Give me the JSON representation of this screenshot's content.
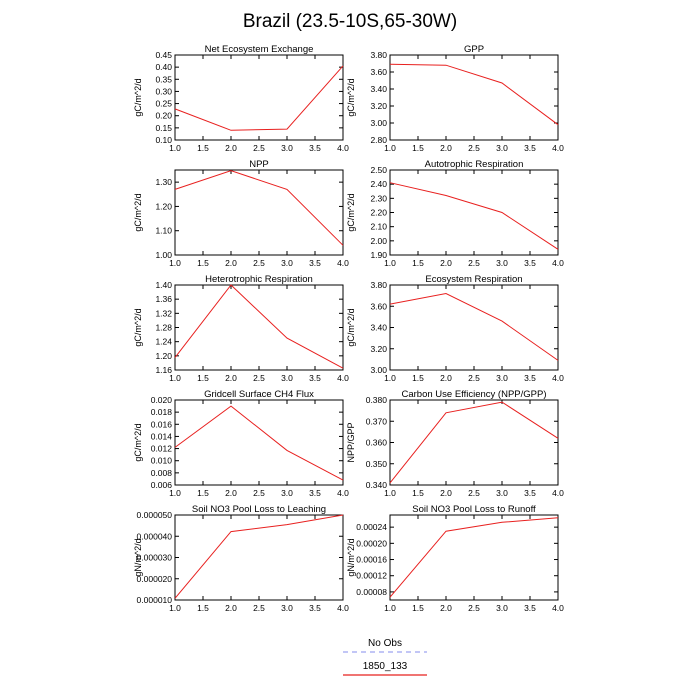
{
  "figure_title": "Brazil (23.5-10S,65-30W)",
  "legend": [
    {
      "label": "No Obs",
      "color": "#9ea3f0",
      "dashed": true
    },
    {
      "label": "1850_133",
      "color": "#e8201f",
      "dashed": false
    }
  ],
  "chart_data": [
    {
      "type": "line",
      "title": "Net Ecosystem Exchange",
      "ylabel": "gC/m^2/d",
      "x": [
        1.0,
        2.0,
        3.0,
        4.0
      ],
      "xlim": [
        1.0,
        4.0
      ],
      "xticks": [
        "1.0",
        "1.5",
        "2.0",
        "2.5",
        "3.0",
        "3.5",
        "4.0"
      ],
      "ylim": [
        0.1,
        0.45
      ],
      "yticks": [
        "0.10",
        "0.15",
        "0.20",
        "0.25",
        "0.30",
        "0.35",
        "0.40",
        "0.45"
      ],
      "series": [
        {
          "name": "1850_133",
          "values": [
            0.228,
            0.14,
            0.145,
            0.405
          ]
        }
      ]
    },
    {
      "type": "line",
      "title": "GPP",
      "ylabel": "gC/m^2/d",
      "x": [
        1.0,
        2.0,
        3.0,
        4.0
      ],
      "xlim": [
        1.0,
        4.0
      ],
      "xticks": [
        "1.0",
        "1.5",
        "2.0",
        "2.5",
        "3.0",
        "3.5",
        "4.0"
      ],
      "ylim": [
        2.8,
        3.8
      ],
      "yticks": [
        "2.80",
        "3.00",
        "3.20",
        "3.40",
        "3.60",
        "3.80"
      ],
      "series": [
        {
          "name": "1850_133",
          "values": [
            3.69,
            3.68,
            3.47,
            2.98
          ]
        }
      ]
    },
    {
      "type": "line",
      "title": "NPP",
      "ylabel": "gC/m^2/d",
      "x": [
        1.0,
        2.0,
        3.0,
        4.0
      ],
      "xlim": [
        1.0,
        4.0
      ],
      "xticks": [
        "1.0",
        "1.5",
        "2.0",
        "2.5",
        "3.0",
        "3.5",
        "4.0"
      ],
      "ylim": [
        1.0,
        1.35
      ],
      "yticks": [
        "1.00",
        "1.10",
        "1.20",
        "1.30"
      ],
      "series": [
        {
          "name": "1850_133",
          "values": [
            1.27,
            1.347,
            1.27,
            1.04
          ]
        }
      ]
    },
    {
      "type": "line",
      "title": "Autotrophic Respiration",
      "ylabel": "gC/m^2/d",
      "x": [
        1.0,
        2.0,
        3.0,
        4.0
      ],
      "xlim": [
        1.0,
        4.0
      ],
      "xticks": [
        "1.0",
        "1.5",
        "2.0",
        "2.5",
        "3.0",
        "3.5",
        "4.0"
      ],
      "ylim": [
        1.9,
        2.5
      ],
      "yticks": [
        "1.90",
        "2.00",
        "2.10",
        "2.20",
        "2.30",
        "2.40",
        "2.50"
      ],
      "series": [
        {
          "name": "1850_133",
          "values": [
            2.41,
            2.32,
            2.2,
            1.94
          ]
        }
      ]
    },
    {
      "type": "line",
      "title": "Heterotrophic Respiration",
      "ylabel": "gC/m^2/d",
      "x": [
        1.0,
        2.0,
        3.0,
        4.0
      ],
      "xlim": [
        1.0,
        4.0
      ],
      "xticks": [
        "1.0",
        "1.5",
        "2.0",
        "2.5",
        "3.0",
        "3.5",
        "4.0"
      ],
      "ylim": [
        1.16,
        1.4
      ],
      "yticks": [
        "1.16",
        "1.20",
        "1.24",
        "1.28",
        "1.32",
        "1.36",
        "1.40"
      ],
      "series": [
        {
          "name": "1850_133",
          "values": [
            1.195,
            1.4,
            1.25,
            1.165
          ]
        }
      ]
    },
    {
      "type": "line",
      "title": "Ecosystem Respiration",
      "ylabel": "gC/m^2/d",
      "x": [
        1.0,
        2.0,
        3.0,
        4.0
      ],
      "xlim": [
        1.0,
        4.0
      ],
      "xticks": [
        "1.0",
        "1.5",
        "2.0",
        "2.5",
        "3.0",
        "3.5",
        "4.0"
      ],
      "ylim": [
        3.0,
        3.8
      ],
      "yticks": [
        "3.00",
        "3.20",
        "3.40",
        "3.60",
        "3.80"
      ],
      "series": [
        {
          "name": "1850_133",
          "values": [
            3.62,
            3.72,
            3.46,
            3.09
          ]
        }
      ]
    },
    {
      "type": "line",
      "title": "Gridcell Surface CH4 Flux",
      "ylabel": "gC/m^2/d",
      "x": [
        1.0,
        2.0,
        3.0,
        4.0
      ],
      "xlim": [
        1.0,
        4.0
      ],
      "xticks": [
        "1.0",
        "1.5",
        "2.0",
        "2.5",
        "3.0",
        "3.5",
        "4.0"
      ],
      "ylim": [
        0.006,
        0.02
      ],
      "yticks": [
        "0.006",
        "0.008",
        "0.010",
        "0.012",
        "0.014",
        "0.016",
        "0.018",
        "0.020"
      ],
      "series": [
        {
          "name": "1850_133",
          "values": [
            0.0122,
            0.019,
            0.0117,
            0.0068
          ]
        }
      ]
    },
    {
      "type": "line",
      "title": "Carbon Use Efficiency (NPP/GPP)",
      "ylabel": "NPP/GPP",
      "x": [
        1.0,
        2.0,
        3.0,
        4.0
      ],
      "xlim": [
        1.0,
        4.0
      ],
      "xticks": [
        "1.0",
        "1.5",
        "2.0",
        "2.5",
        "3.0",
        "3.5",
        "4.0"
      ],
      "ylim": [
        0.34,
        0.38
      ],
      "yticks": [
        "0.340",
        "0.350",
        "0.360",
        "0.370",
        "0.380"
      ],
      "series": [
        {
          "name": "1850_133",
          "values": [
            0.341,
            0.374,
            0.379,
            0.362
          ]
        }
      ]
    },
    {
      "type": "line",
      "title": "Soil NO3 Pool Loss to Leaching",
      "ylabel": "gN/m^2/d",
      "x": [
        1.0,
        2.0,
        3.0,
        4.0
      ],
      "xlim": [
        1.0,
        4.0
      ],
      "xticks": [
        "1.0",
        "1.5",
        "2.0",
        "2.5",
        "3.0",
        "3.5",
        "4.0"
      ],
      "ylim": [
        1e-05,
        5e-05
      ],
      "yticks": [
        "0.000010",
        "0.000020",
        "0.000030",
        "0.000040",
        "0.000050"
      ],
      "series": [
        {
          "name": "1850_133",
          "values": [
            1.08e-05,
            4.22e-05,
            4.55e-05,
            5e-05
          ]
        }
      ]
    },
    {
      "type": "line",
      "title": "Soil NO3 Pool Loss to Runoff",
      "ylabel": "gN/m^2/d",
      "x": [
        1.0,
        2.0,
        3.0,
        4.0
      ],
      "xlim": [
        1.0,
        4.0
      ],
      "xticks": [
        "1.0",
        "1.5",
        "2.0",
        "2.5",
        "3.0",
        "3.5",
        "4.0"
      ],
      "ylim": [
        6e-05,
        0.00027
      ],
      "yticks": [
        "0.00008",
        "0.00012",
        "0.00016",
        "0.00020",
        "0.00024"
      ],
      "series": [
        {
          "name": "1850_133",
          "values": [
            6.7e-05,
            0.00023,
            0.000252,
            0.000263
          ]
        }
      ]
    }
  ]
}
